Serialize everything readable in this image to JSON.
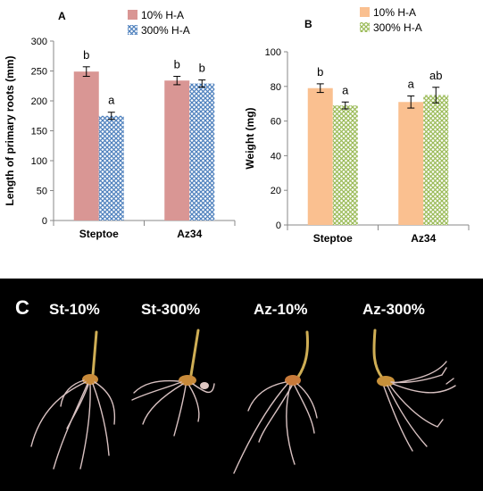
{
  "panels": {
    "a_label": "A",
    "b_label": "B",
    "c_label": "C"
  },
  "photo": {
    "labels": [
      "St-10%",
      "St-300%",
      "Az-10%",
      "Az-300%"
    ],
    "background": "#000000",
    "root_color": "#d9c2c2",
    "coleoptile_color": "#d4b25a"
  },
  "chart_data": [
    {
      "type": "bar",
      "panel": "A",
      "categories": [
        "Steptoe",
        "Az34"
      ],
      "ylabel": "Length of primary roots (mm)",
      "xlabel": "",
      "ylim": [
        0,
        300
      ],
      "yticks": [
        0,
        50,
        100,
        150,
        200,
        250,
        300
      ],
      "legend_position": "top",
      "series": [
        {
          "name": "10% H-A",
          "values": [
            249,
            234
          ],
          "errors": [
            8,
            7
          ],
          "letters": [
            "b",
            "b"
          ],
          "color": "#d99694",
          "pattern": "solid"
        },
        {
          "name": "300% H-A",
          "values": [
            175,
            229
          ],
          "errors": [
            6,
            6
          ],
          "letters": [
            "a",
            "b"
          ],
          "color": "#4f81bd",
          "pattern": "crosshatch"
        }
      ]
    },
    {
      "type": "bar",
      "panel": "B",
      "categories": [
        "Steptoe",
        "Az34"
      ],
      "ylabel": "Weight (mg)",
      "xlabel": "",
      "ylim": [
        0,
        100
      ],
      "yticks": [
        0,
        20,
        40,
        60,
        80,
        100
      ],
      "legend_position": "top",
      "series": [
        {
          "name": "10% H-A",
          "values": [
            79,
            71
          ],
          "errors": [
            2.5,
            3.5
          ],
          "letters": [
            "b",
            "a"
          ],
          "color": "#fac090",
          "pattern": "solid"
        },
        {
          "name": "300% H-A",
          "values": [
            69,
            75
          ],
          "errors": [
            2,
            4.5
          ],
          "letters": [
            "a",
            "ab"
          ],
          "color": "#9bbb59",
          "pattern": "crosshatch"
        }
      ]
    }
  ]
}
